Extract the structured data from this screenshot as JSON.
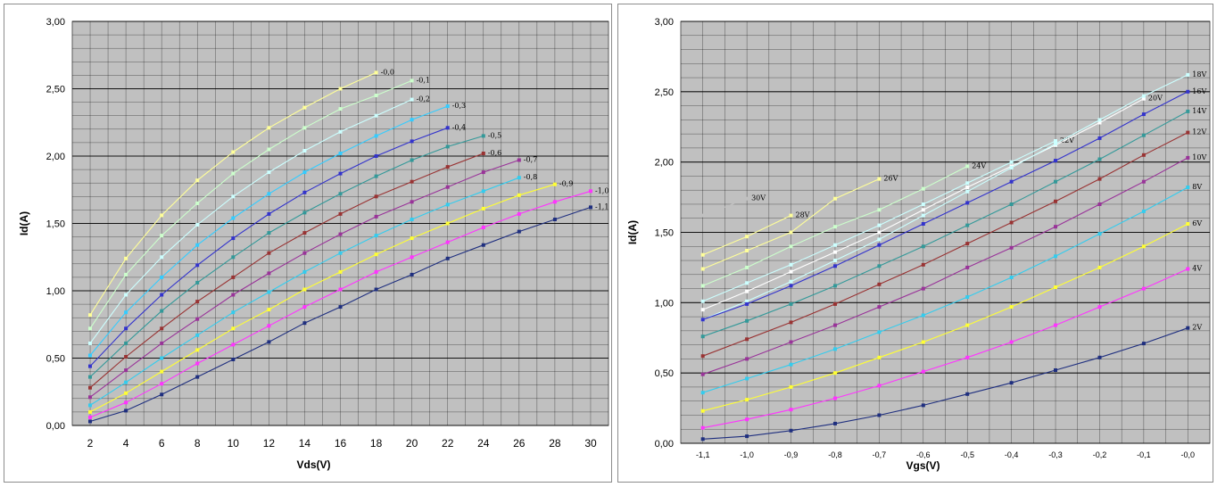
{
  "chart_data": [
    {
      "type": "line",
      "title": "",
      "xlabel": "Vds(V)",
      "ylabel": "Id(A)",
      "xlim": [
        1,
        31
      ],
      "ylim": [
        0,
        3
      ],
      "x_ticks": [
        "2",
        "4",
        "6",
        "8",
        "10",
        "12",
        "14",
        "16",
        "18",
        "20",
        "22",
        "24",
        "26",
        "28",
        "30"
      ],
      "y_ticks": [
        "0,00",
        "0,50",
        "1,00",
        "1,50",
        "2,00",
        "2,50",
        "3,00"
      ],
      "grid": true,
      "plot_background": "#c0c0c0",
      "series": [
        {
          "name": "-0,0",
          "color": "#ffff99",
          "x": [
            2,
            4,
            6,
            8,
            10,
            12,
            14,
            16,
            18
          ],
          "y": [
            0.82,
            1.24,
            1.56,
            1.82,
            2.03,
            2.21,
            2.36,
            2.5,
            2.62
          ]
        },
        {
          "name": "-0,1",
          "color": "#ccffcc",
          "x": [
            2,
            4,
            6,
            8,
            10,
            12,
            14,
            16,
            18,
            20
          ],
          "y": [
            0.72,
            1.12,
            1.41,
            1.65,
            1.87,
            2.05,
            2.21,
            2.35,
            2.45,
            2.56
          ]
        },
        {
          "name": "-0,2",
          "color": "#ccffff",
          "x": [
            2,
            4,
            6,
            8,
            10,
            12,
            14,
            16,
            18,
            20
          ],
          "y": [
            0.61,
            0.97,
            1.25,
            1.49,
            1.7,
            1.88,
            2.04,
            2.18,
            2.3,
            2.42
          ]
        },
        {
          "name": "-0,3",
          "color": "#33ccff",
          "x": [
            2,
            4,
            6,
            8,
            10,
            12,
            14,
            16,
            18,
            20,
            22
          ],
          "y": [
            0.52,
            0.84,
            1.1,
            1.34,
            1.54,
            1.72,
            1.88,
            2.02,
            2.15,
            2.27,
            2.37
          ]
        },
        {
          "name": "-0,4",
          "color": "#3333cc",
          "x": [
            2,
            4,
            6,
            8,
            10,
            12,
            14,
            16,
            18,
            20,
            22
          ],
          "y": [
            0.44,
            0.72,
            0.97,
            1.19,
            1.39,
            1.57,
            1.73,
            1.87,
            2.0,
            2.11,
            2.21
          ]
        },
        {
          "name": "-0,5",
          "color": "#339999",
          "x": [
            2,
            4,
            6,
            8,
            10,
            12,
            14,
            16,
            18,
            20,
            22,
            24
          ],
          "y": [
            0.36,
            0.61,
            0.85,
            1.06,
            1.25,
            1.43,
            1.58,
            1.72,
            1.85,
            1.97,
            2.07,
            2.15
          ]
        },
        {
          "name": "-0,6",
          "color": "#993333",
          "x": [
            2,
            4,
            6,
            8,
            10,
            12,
            14,
            16,
            18,
            20,
            22,
            24
          ],
          "y": [
            0.28,
            0.51,
            0.72,
            0.92,
            1.1,
            1.28,
            1.43,
            1.57,
            1.7,
            1.81,
            1.92,
            2.02
          ]
        },
        {
          "name": "-0,7",
          "color": "#993399",
          "x": [
            2,
            4,
            6,
            8,
            10,
            12,
            14,
            16,
            18,
            20,
            22,
            24,
            26
          ],
          "y": [
            0.21,
            0.41,
            0.61,
            0.79,
            0.97,
            1.13,
            1.28,
            1.42,
            1.55,
            1.66,
            1.77,
            1.88,
            1.97
          ]
        },
        {
          "name": "-0,8",
          "color": "#33ccee",
          "x": [
            2,
            4,
            6,
            8,
            10,
            12,
            14,
            16,
            18,
            20,
            22,
            24,
            26
          ],
          "y": [
            0.15,
            0.32,
            0.5,
            0.67,
            0.84,
            0.99,
            1.14,
            1.28,
            1.41,
            1.53,
            1.64,
            1.74,
            1.84
          ]
        },
        {
          "name": "-0,9",
          "color": "#ffff33",
          "x": [
            2,
            4,
            6,
            8,
            10,
            12,
            14,
            16,
            18,
            20,
            22,
            24,
            26,
            28
          ],
          "y": [
            0.1,
            0.24,
            0.4,
            0.56,
            0.72,
            0.86,
            1.01,
            1.14,
            1.27,
            1.39,
            1.5,
            1.61,
            1.71,
            1.79
          ]
        },
        {
          "name": "-1,0",
          "color": "#ff33ff",
          "x": [
            2,
            4,
            6,
            8,
            10,
            12,
            14,
            16,
            18,
            20,
            22,
            24,
            26,
            28,
            30
          ],
          "y": [
            0.06,
            0.17,
            0.31,
            0.46,
            0.6,
            0.74,
            0.88,
            1.01,
            1.14,
            1.25,
            1.36,
            1.47,
            1.57,
            1.66,
            1.74
          ]
        },
        {
          "name": "-1,1",
          "color": "#1f2f7f",
          "x": [
            2,
            4,
            6,
            8,
            10,
            12,
            14,
            16,
            18,
            20,
            22,
            24,
            26,
            28,
            30
          ],
          "y": [
            0.03,
            0.11,
            0.23,
            0.36,
            0.49,
            0.62,
            0.76,
            0.88,
            1.01,
            1.12,
            1.24,
            1.34,
            1.44,
            1.53,
            1.62
          ]
        }
      ]
    },
    {
      "type": "line",
      "title": "",
      "xlabel": "Vgs(V)",
      "ylabel": "Id(A)",
      "xlim": [
        -1.15,
        0.05
      ],
      "ylim": [
        0,
        3
      ],
      "x_ticks": [
        "-1,1",
        "-1,0",
        "-0,9",
        "-0,8",
        "-0,7",
        "-0,6",
        "-0,5",
        "-0,4",
        "-0,3",
        "-0,2",
        "-0,1",
        "-0,0"
      ],
      "y_ticks": [
        "0,00",
        "0,50",
        "1,00",
        "1,50",
        "2,00",
        "2,50",
        "3,00"
      ],
      "grid": true,
      "plot_background": "#c0c0c0",
      "series": [
        {
          "name": "30V",
          "color": "#c0c0c0",
          "x": [
            -1.1,
            -1.0
          ],
          "y": [
            1.62,
            1.74
          ]
        },
        {
          "name": "28V",
          "color": "#ffff99",
          "x": [
            -1.1,
            -1.0,
            -0.9
          ],
          "y": [
            1.34,
            1.47,
            1.62
          ]
        },
        {
          "name": "26V",
          "color": "#ffff99",
          "x": [
            -1.1,
            -1.0,
            -0.9,
            -0.8,
            -0.7
          ],
          "y": [
            1.24,
            1.37,
            1.5,
            1.74,
            1.88
          ]
        },
        {
          "name": "24V",
          "color": "#ccffcc",
          "x": [
            -1.1,
            -1.0,
            -0.9,
            -0.8,
            -0.7,
            -0.6,
            -0.5
          ],
          "y": [
            1.12,
            1.25,
            1.4,
            1.54,
            1.66,
            1.81,
            1.97
          ]
        },
        {
          "name": "22V",
          "color": "#ccffff",
          "x": [
            -1.1,
            -1.0,
            -0.9,
            -0.8,
            -0.7,
            -0.6,
            -0.5,
            -0.4,
            -0.3
          ],
          "y": [
            1.01,
            1.14,
            1.27,
            1.41,
            1.55,
            1.7,
            1.85,
            2.0,
            2.15
          ]
        },
        {
          "name": "20V",
          "color": "#ffffff",
          "x": [
            -1.1,
            -1.0,
            -0.9,
            -0.8,
            -0.7,
            -0.6,
            -0.5,
            -0.4,
            -0.3,
            -0.2,
            -0.1
          ],
          "y": [
            0.95,
            1.08,
            1.22,
            1.36,
            1.5,
            1.66,
            1.82,
            1.97,
            2.12,
            2.28,
            2.45
          ]
        },
        {
          "name": "18V",
          "color": "#ccffff",
          "x": [
            -1.1,
            -1.0,
            -0.9,
            -0.8,
            -0.7,
            -0.6,
            -0.5,
            -0.4,
            -0.3,
            -0.2,
            -0.1,
            0.0
          ],
          "y": [
            0.88,
            1.01,
            1.15,
            1.3,
            1.45,
            1.62,
            1.79,
            1.96,
            2.13,
            2.3,
            2.47,
            2.62
          ]
        },
        {
          "name": "16V",
          "color": "#3333cc",
          "x": [
            -1.1,
            -1.0,
            -0.9,
            -0.8,
            -0.7,
            -0.6,
            -0.5,
            -0.4,
            -0.3,
            -0.2,
            -0.1,
            0.0
          ],
          "y": [
            0.88,
            0.99,
            1.12,
            1.26,
            1.41,
            1.56,
            1.71,
            1.86,
            2.01,
            2.17,
            2.34,
            2.5
          ]
        },
        {
          "name": "14V",
          "color": "#339999",
          "x": [
            -1.1,
            -1.0,
            -0.9,
            -0.8,
            -0.7,
            -0.6,
            -0.5,
            -0.4,
            -0.3,
            -0.2,
            -0.1,
            0.0
          ],
          "y": [
            0.76,
            0.87,
            0.99,
            1.12,
            1.26,
            1.4,
            1.55,
            1.7,
            1.86,
            2.02,
            2.19,
            2.36
          ]
        },
        {
          "name": "12V",
          "color": "#993333",
          "x": [
            -1.1,
            -1.0,
            -0.9,
            -0.8,
            -0.7,
            -0.6,
            -0.5,
            -0.4,
            -0.3,
            -0.2,
            -0.1,
            0.0
          ],
          "y": [
            0.62,
            0.74,
            0.86,
            0.99,
            1.13,
            1.27,
            1.42,
            1.57,
            1.72,
            1.88,
            2.05,
            2.21
          ]
        },
        {
          "name": "10V",
          "color": "#993399",
          "x": [
            -1.1,
            -1.0,
            -0.9,
            -0.8,
            -0.7,
            -0.6,
            -0.5,
            -0.4,
            -0.3,
            -0.2,
            -0.1,
            0.0
          ],
          "y": [
            0.49,
            0.6,
            0.72,
            0.84,
            0.97,
            1.1,
            1.25,
            1.39,
            1.54,
            1.7,
            1.86,
            2.03
          ]
        },
        {
          "name": "8V",
          "color": "#33ccee",
          "x": [
            -1.1,
            -1.0,
            -0.9,
            -0.8,
            -0.7,
            -0.6,
            -0.5,
            -0.4,
            -0.3,
            -0.2,
            -0.1,
            0.0
          ],
          "y": [
            0.36,
            0.46,
            0.56,
            0.67,
            0.79,
            0.91,
            1.04,
            1.18,
            1.33,
            1.49,
            1.65,
            1.82
          ]
        },
        {
          "name": "6V",
          "color": "#ffff33",
          "x": [
            -1.1,
            -1.0,
            -0.9,
            -0.8,
            -0.7,
            -0.6,
            -0.5,
            -0.4,
            -0.3,
            -0.2,
            -0.1,
            0.0
          ],
          "y": [
            0.23,
            0.31,
            0.4,
            0.5,
            0.61,
            0.72,
            0.84,
            0.97,
            1.11,
            1.25,
            1.4,
            1.56
          ]
        },
        {
          "name": "4V",
          "color": "#ff33ff",
          "x": [
            -1.1,
            -1.0,
            -0.9,
            -0.8,
            -0.7,
            -0.6,
            -0.5,
            -0.4,
            -0.3,
            -0.2,
            -0.1,
            0.0
          ],
          "y": [
            0.11,
            0.17,
            0.24,
            0.32,
            0.41,
            0.51,
            0.61,
            0.72,
            0.84,
            0.97,
            1.1,
            1.24
          ]
        },
        {
          "name": "2V",
          "color": "#1f2f7f",
          "x": [
            -1.1,
            -1.0,
            -0.9,
            -0.8,
            -0.7,
            -0.6,
            -0.5,
            -0.4,
            -0.3,
            -0.2,
            -0.1,
            0.0
          ],
          "y": [
            0.03,
            0.05,
            0.09,
            0.14,
            0.2,
            0.27,
            0.35,
            0.43,
            0.52,
            0.61,
            0.71,
            0.82
          ]
        }
      ]
    }
  ]
}
